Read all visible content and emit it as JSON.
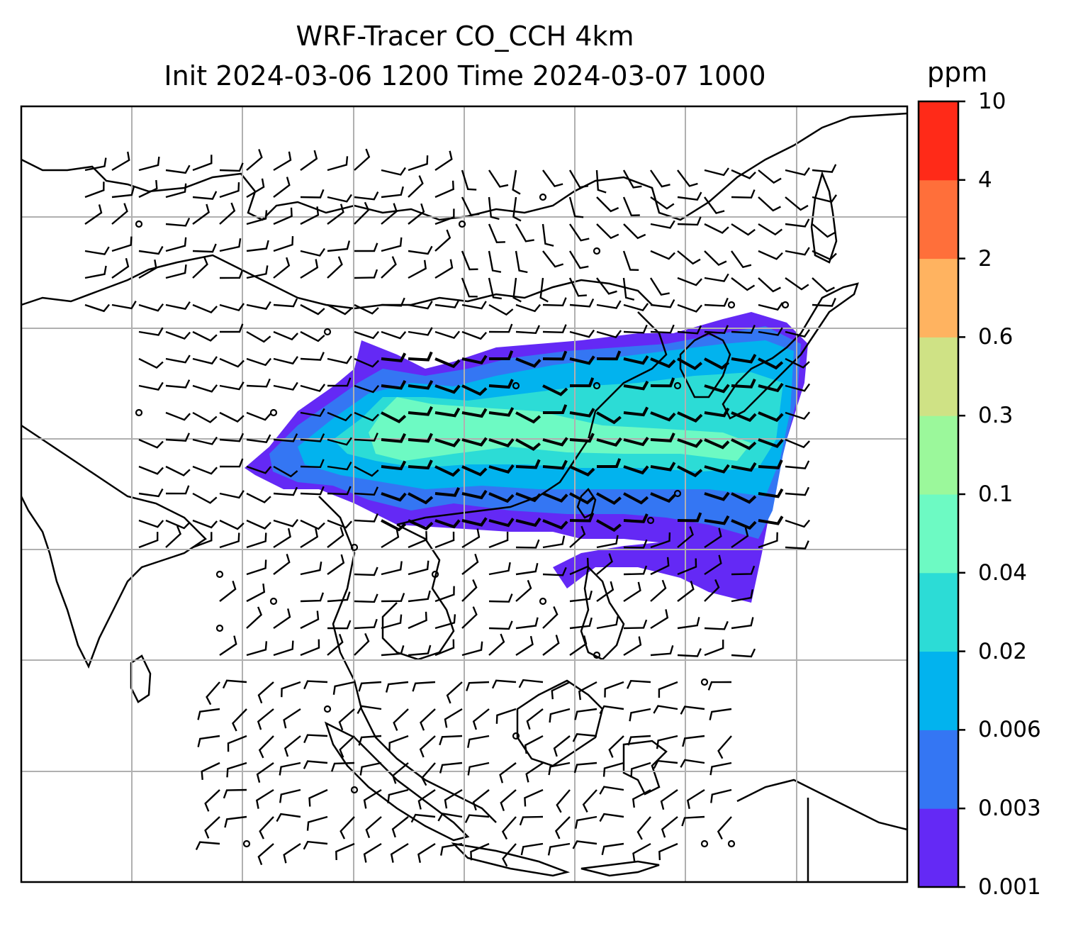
{
  "title": {
    "line1": "WRF-Tracer CO_CCH 4km",
    "line2": "Init 2024-03-06 1200 Time 2024-03-07 1000"
  },
  "colorbar": {
    "unit": "ppm",
    "ticks": [
      "0.001",
      "0.003",
      "0.006",
      "0.02",
      "0.04",
      "0.1",
      "0.3",
      "0.6",
      "2",
      "4",
      "10"
    ],
    "colors": [
      "#6429f5",
      "#3476f3",
      "#02b3ee",
      "#2cdcd6",
      "#6dfac3",
      "#9bf89b",
      "#cfe285",
      "#ffb360",
      "#ff6f3a",
      "#ff2a18"
    ]
  },
  "map": {
    "gridlines": true,
    "coastline_color": "#000000",
    "gridline_color": "#b0b0b0",
    "barb_color": "#000000"
  }
}
